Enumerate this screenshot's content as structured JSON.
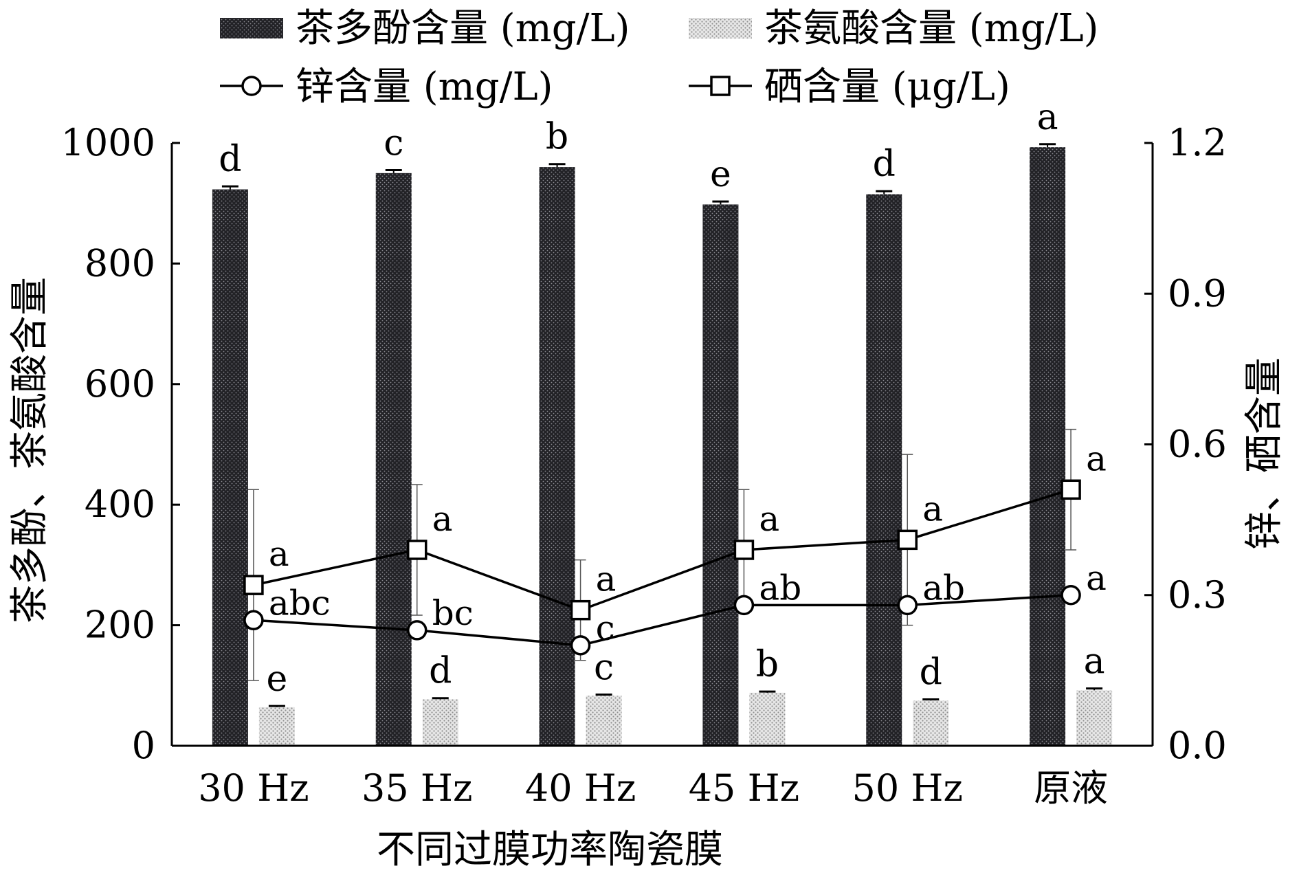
{
  "chart_data": {
    "type": "bar",
    "xlabel": "不同过膜功率陶瓷膜",
    "ylabel_left": "茶多酚、茶氨酸含量",
    "ylabel_right": "锌、硒含量",
    "categories": [
      "30 Hz",
      "35 Hz",
      "40 Hz",
      "45 Hz",
      "50 Hz",
      "原液"
    ],
    "ylim_left": [
      0,
      1000
    ],
    "yticks_left": [
      "0",
      "200",
      "400",
      "600",
      "800",
      "1000"
    ],
    "ylim_right": [
      0,
      1.2
    ],
    "yticks_right": [
      "0.0",
      "0.3",
      "0.6",
      "0.9",
      "1.2"
    ],
    "legend_position": "top",
    "series": [
      {
        "name": "茶多酚含量 (mg/L)",
        "kind": "bar",
        "axis": "left",
        "pattern": "dark-dots",
        "values": [
          923,
          950,
          960,
          898,
          915,
          993
        ],
        "errors": [
          5,
          5,
          5,
          5,
          5,
          5
        ],
        "letters": [
          "d",
          "c",
          "b",
          "e",
          "d",
          "a"
        ]
      },
      {
        "name": "茶氨酸含量 (mg/L)",
        "kind": "bar",
        "axis": "left",
        "pattern": "light-dots",
        "values": [
          64,
          77,
          83,
          88,
          75,
          92
        ],
        "errors": [
          2,
          2,
          2,
          2,
          2,
          3
        ],
        "letters": [
          "e",
          "d",
          "c",
          "b",
          "d",
          "a"
        ]
      },
      {
        "name": "锌含量 (mg/L)",
        "kind": "line",
        "axis": "right",
        "marker": "circle",
        "values": [
          0.25,
          0.23,
          0.2,
          0.28,
          0.28,
          0.3
        ],
        "letters": [
          "abc",
          "bc",
          "c",
          "ab",
          "ab",
          "a"
        ]
      },
      {
        "name": "硒含量 (μg/L)",
        "kind": "line",
        "axis": "right",
        "marker": "square",
        "values": [
          0.32,
          0.39,
          0.27,
          0.39,
          0.41,
          0.51
        ],
        "errors": [
          0.19,
          0.13,
          0.1,
          0.12,
          0.17,
          0.12
        ],
        "letters": [
          "a",
          "a",
          "a",
          "a",
          "a",
          "a"
        ]
      }
    ]
  }
}
